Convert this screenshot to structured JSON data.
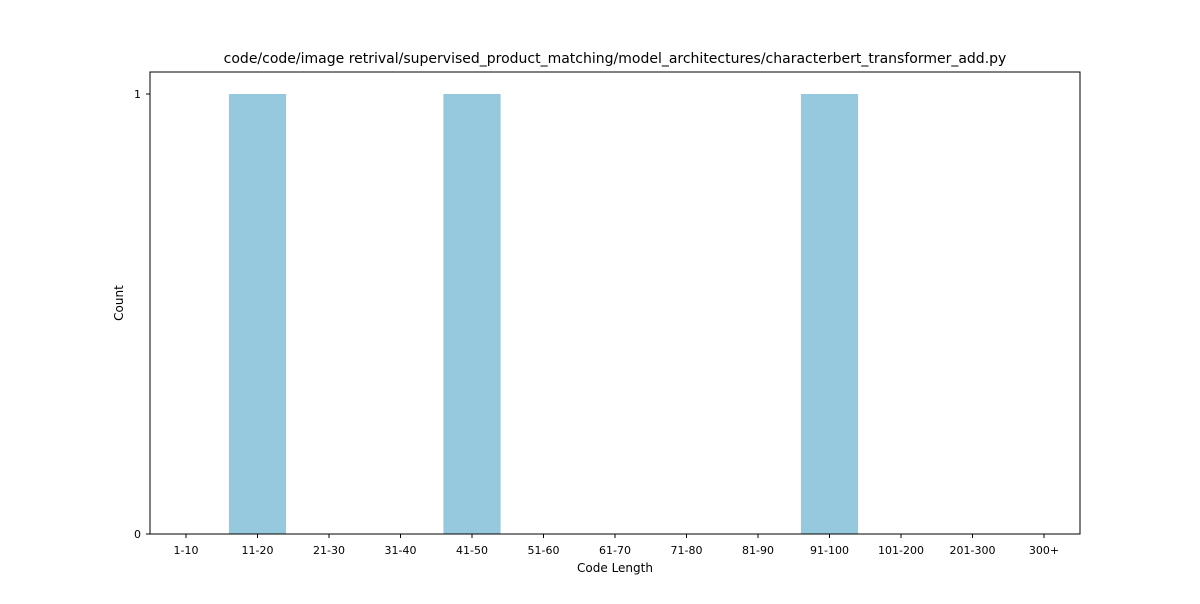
{
  "chart_data": {
    "type": "bar",
    "title": "code/code/image retrival/supervised_product_matching/model_architectures/characterbert_transformer_add.py",
    "xlabel": "Code Length",
    "ylabel": "Count",
    "categories": [
      "1-10",
      "11-20",
      "21-30",
      "31-40",
      "41-50",
      "51-60",
      "61-70",
      "71-80",
      "81-90",
      "91-100",
      "101-200",
      "201-300",
      "300+"
    ],
    "values": [
      0,
      1,
      0,
      0,
      1,
      0,
      0,
      0,
      0,
      1,
      0,
      0,
      0
    ],
    "ylim": [
      0,
      1
    ],
    "yticks": [
      0,
      1
    ],
    "bar_color": "#96c9dd",
    "grid": false,
    "legend": "none"
  }
}
